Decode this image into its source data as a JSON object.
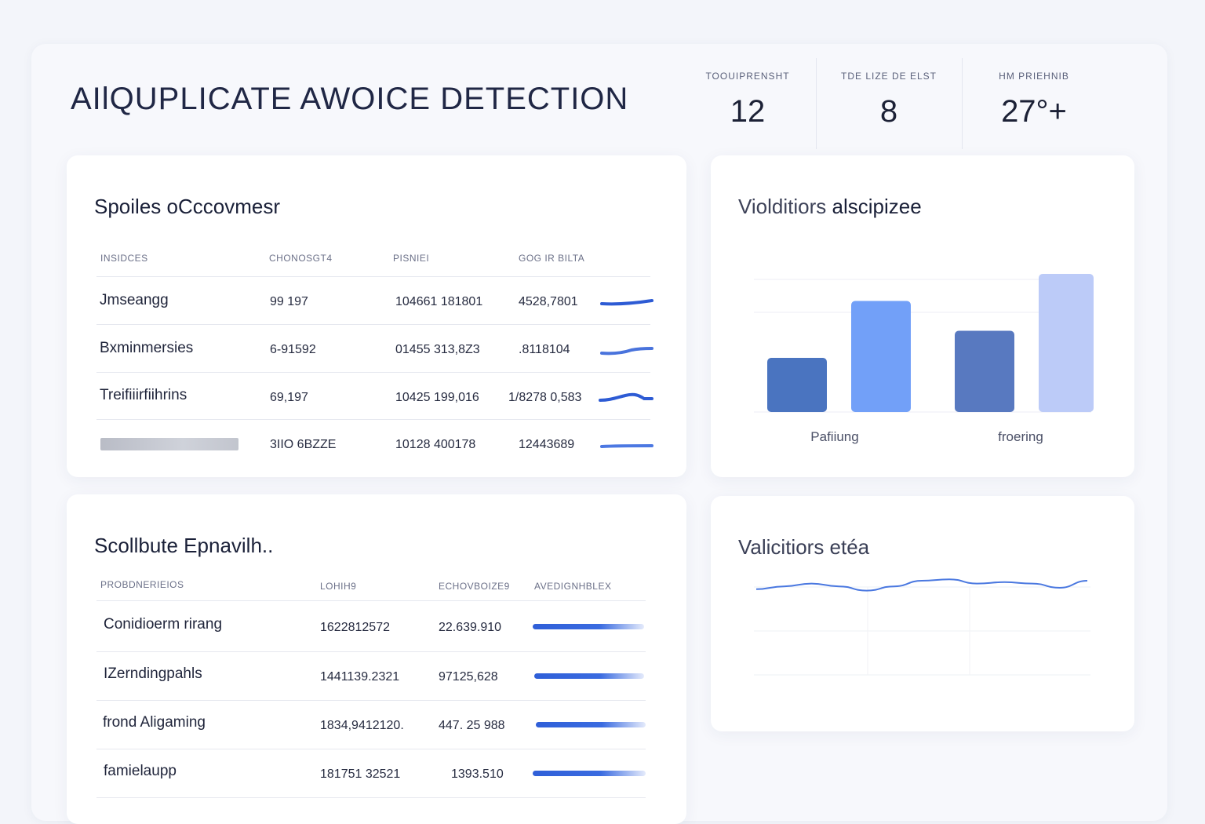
{
  "title": "AIlQUPLICATE AWOICE DETECTION",
  "stats": [
    {
      "label": "TOOUIPRENSHT",
      "value": "12"
    },
    {
      "label": "TDE LIZE DE ELST",
      "value": "8"
    },
    {
      "label": "HM PRIEHNIB",
      "value": "27°+"
    }
  ],
  "table1": {
    "title": "Spoiles oCccovmesr",
    "headers": [
      "INSIDCES",
      "CHONOSGT4",
      "PISNIEI",
      "GOG IR BILTA"
    ],
    "rows": [
      {
        "name": "Jmseangg",
        "c1": "99 197",
        "c2": "104661 181801",
        "c3": "4528,7801",
        "trend": 0.85
      },
      {
        "name": "Bxminmersies",
        "c1": "6-91592",
        "c2": "01455 313,8Z3",
        "c3": ".8118104",
        "trend": 0.7
      },
      {
        "name": "Treifiiirfiihrins",
        "c1": "69,197",
        "c2": "10425 199,016",
        "c3": "1/8278 0,583",
        "trend": 0.9
      },
      {
        "name": "",
        "c1": "3IIO 6BZZE",
        "c2": "10128 400178",
        "c3": "12443689",
        "trend": 0.65
      }
    ]
  },
  "bar_card": {
    "title_light": "Violditiors",
    "title_bold": "alscipizee",
    "chart_data": {
      "type": "bar",
      "categories": [
        "Pafiiung",
        "froering"
      ],
      "series": [
        {
          "values": [
            2.0,
            3.0
          ]
        },
        {
          "values": [
            4.1,
            5.1
          ]
        }
      ],
      "colors": [
        "#4a74c0",
        "#72a0f8",
        "#5879c0",
        "#bccbf8"
      ],
      "ylim": [
        0,
        6
      ],
      "grid": true
    }
  },
  "table2": {
    "title": "Scollbute Epnavilh..",
    "headers": [
      "PROBDNERIEIOS",
      "LOHIH9",
      "ECHOVBOIZE9",
      "AVEDIGNHBLEX"
    ],
    "rows": [
      {
        "name": "Conidioerm rirang",
        "c1": "1622812572",
        "c2": "22.639.910",
        "progress": 0.55
      },
      {
        "name": "IZerndingpahls",
        "c1": "1441139.2321",
        "c2": "97125,628",
        "progress": 0.6
      },
      {
        "name": "frond Aligaming",
        "c1": "1834,9412120.",
        "c2": "447. 25 988",
        "progress": 0.5
      },
      {
        "name": "famielaupp",
        "c1": "181751 32521",
        "c2": "1393.510",
        "progress": 0.55
      }
    ]
  },
  "line_card": {
    "title": "Valicitiors etéa",
    "chart_data": {
      "type": "line",
      "x": [
        0,
        1,
        2,
        3,
        4,
        5,
        6,
        7,
        8,
        9,
        10,
        11,
        12
      ],
      "series": [
        {
          "values": [
            4.4,
            4.6,
            4.8,
            4.6,
            4.3,
            4.6,
            5.0,
            5.1,
            4.8,
            4.9,
            4.8,
            4.5,
            5.0
          ]
        }
      ],
      "ylim": [
        0,
        6
      ],
      "grid": true,
      "color": "#4a78e0"
    }
  }
}
